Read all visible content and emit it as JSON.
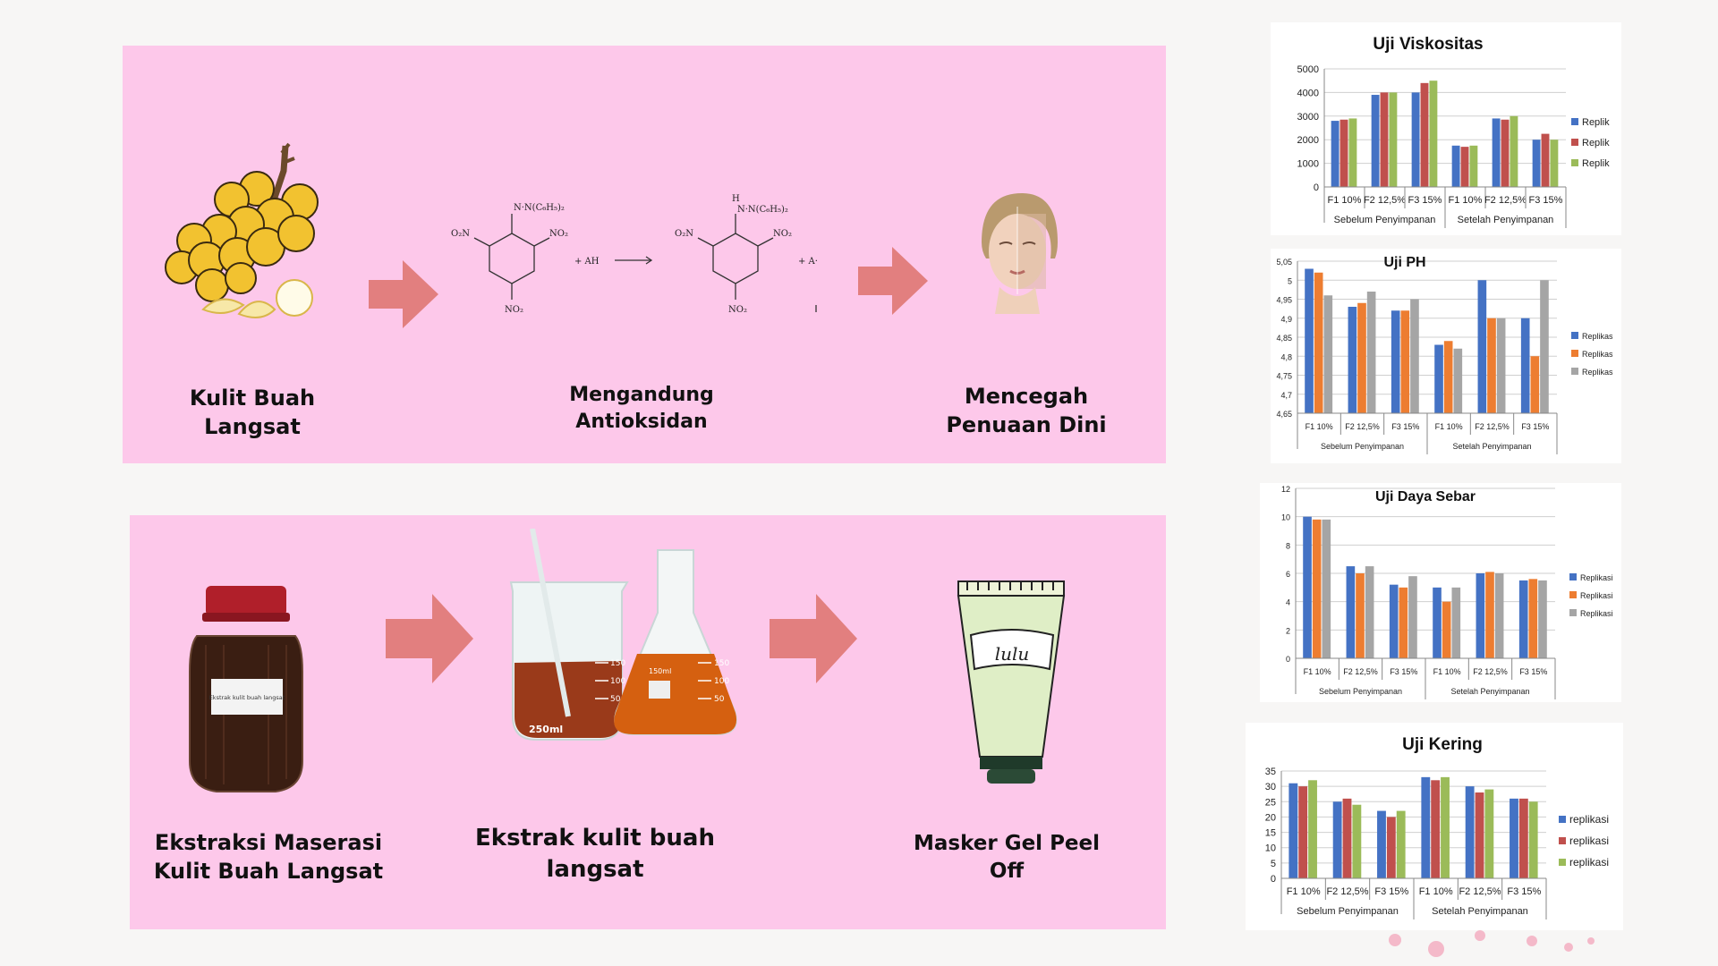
{
  "flow_top": {
    "steps": [
      {
        "label_line1": "Kulit Buah",
        "label_line2": "Langsat",
        "icon": "langsat-fruit-icon"
      },
      {
        "label_line1": "Mengandung",
        "label_line2": "Antioksidan",
        "icon": "dpph-reaction-diagram"
      },
      {
        "label_line1": "Mencegah",
        "label_line2": "Penuaan Dini",
        "icon": "face-aging-icon"
      }
    ],
    "reaction": {
      "left_group": "N·N(C₆H₅)₂",
      "right_group": "N·N(C₆H₅)₂",
      "h_label": "H",
      "no2": "NO₂",
      "o2n": "O₂N",
      "reagent": "+ AH",
      "product": "+ A·"
    }
  },
  "flow_bottom": {
    "steps": [
      {
        "label_line1": "Ekstraksi Maserasi",
        "label_line2": "Kulit Buah Langsat",
        "icon": "maceration-jar-icon"
      },
      {
        "label_line1": "Ekstrak kulit buah",
        "label_line2": "langsat",
        "icon": "beaker-flask-icon"
      },
      {
        "label_line1": "Masker Gel Peel",
        "label_line2": "Off",
        "icon": "gel-tube-icon"
      }
    ],
    "jar_label": "Ekstrak kulit buah langsat",
    "beaker_marks": [
      "250ml",
      "150",
      "100",
      "50"
    ],
    "flask_marks": [
      "150",
      "100",
      "50"
    ],
    "flask_volume": "150ml",
    "tube_label": "lulu"
  },
  "colors": {
    "panel": "#fdc8ea",
    "arrow": "#e27f7f",
    "series_blue": "#4472c4",
    "series_red": "#c0504d",
    "series_green": "#9bbb59",
    "series_orange": "#ed7d31",
    "series_gray": "#a5a5a5"
  },
  "chart_data": [
    {
      "type": "bar",
      "title": "Uji Viskositas",
      "categories": [
        "F1 10%",
        "F2 12,5%",
        "F3 15%",
        "F1 10%",
        "F2 12,5%",
        "F3 15%"
      ],
      "groups": [
        "Sebelum Penyimpanan",
        "Setelah Penyimpanan"
      ],
      "ylim": [
        0,
        5000
      ],
      "yticks": [
        "0",
        "1000",
        "2000",
        "3000",
        "4000",
        "5000"
      ],
      "legend": [
        "Replik",
        "Replik",
        "Replik"
      ],
      "legend_position": "right",
      "series": [
        {
          "values": [
            2800,
            3900,
            4000,
            1750,
            2900,
            2000
          ]
        },
        {
          "values": [
            2850,
            4000,
            4400,
            1700,
            2850,
            2250
          ]
        },
        {
          "values": [
            2900,
            4000,
            4500,
            1750,
            3000,
            2000
          ]
        }
      ]
    },
    {
      "type": "bar",
      "title": "Uji PH",
      "categories": [
        "F1 10%",
        "F2 12,5%",
        "F3 15%",
        "F1 10%",
        "F2 12,5%",
        "F3 15%"
      ],
      "groups": [
        "Sebelum Penyimpanan",
        "Setelah Penyimpanan"
      ],
      "ylim": [
        4.65,
        5.05
      ],
      "yticks": [
        "4,65",
        "4,7",
        "4,75",
        "4,8",
        "4,85",
        "4,9",
        "4,95",
        "5",
        "5,05"
      ],
      "legend": [
        "Replikas",
        "Replikas",
        "Replikas"
      ],
      "legend_position": "right",
      "series": [
        {
          "values": [
            5.03,
            4.93,
            4.92,
            4.83,
            5.0,
            4.9
          ]
        },
        {
          "values": [
            5.02,
            4.94,
            4.92,
            4.84,
            4.9,
            4.8
          ]
        },
        {
          "values": [
            4.96,
            4.97,
            4.95,
            4.82,
            4.9,
            5.0
          ]
        }
      ]
    },
    {
      "type": "bar",
      "title": "Uji Daya Sebar",
      "categories": [
        "F1 10%",
        "F2 12,5%",
        "F3 15%",
        "F1 10%",
        "F2 12,5%",
        "F3 15%"
      ],
      "groups": [
        "Sebelum Penyimpanan",
        "Setelah Penyimpanan"
      ],
      "ylim": [
        0,
        12
      ],
      "yticks": [
        "0",
        "2",
        "4",
        "6",
        "8",
        "10",
        "12"
      ],
      "legend": [
        "Replikasi",
        "Replikasi",
        "Replikasi"
      ],
      "legend_position": "right",
      "series": [
        {
          "values": [
            10.0,
            6.5,
            5.2,
            5.0,
            6.0,
            5.5
          ]
        },
        {
          "values": [
            9.8,
            6.0,
            5.0,
            4.0,
            6.1,
            5.6
          ]
        },
        {
          "values": [
            9.8,
            6.5,
            5.8,
            5.0,
            6.0,
            5.5
          ]
        }
      ]
    },
    {
      "type": "bar",
      "title": "Uji Kering",
      "categories": [
        "F1 10%",
        "F2 12,5%",
        "F3 15%",
        "F1 10%",
        "F2 12,5%",
        "F3 15%"
      ],
      "groups": [
        "Sebelum Penyimpanan",
        "Setelah Penyimpanan"
      ],
      "ylim": [
        0,
        35
      ],
      "yticks": [
        "0",
        "5",
        "10",
        "15",
        "20",
        "25",
        "30",
        "35"
      ],
      "legend": [
        "replikasi",
        "replikasi",
        "replikasi"
      ],
      "legend_position": "right",
      "series": [
        {
          "values": [
            31,
            25,
            22,
            33,
            30,
            26
          ]
        },
        {
          "values": [
            30,
            26,
            20,
            32,
            28,
            26
          ]
        },
        {
          "values": [
            32,
            24,
            22,
            33,
            29,
            25
          ]
        }
      ]
    }
  ]
}
